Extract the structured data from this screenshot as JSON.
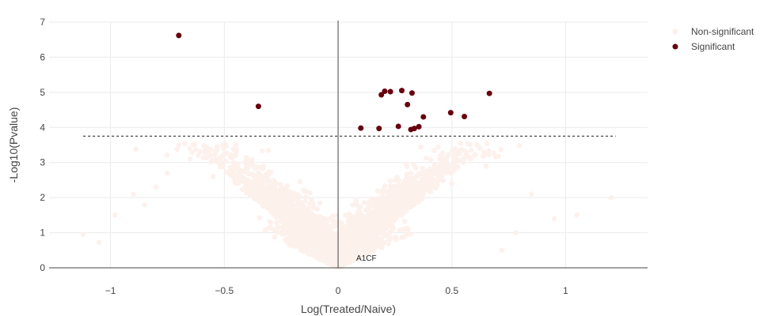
{
  "chart_data": {
    "type": "scatter",
    "title": "",
    "xlabel": "Log(Treated/Naive)",
    "ylabel": "-Log10(Pvalue)",
    "xlim": [
      -1.27,
      1.36
    ],
    "ylim": [
      0,
      7
    ],
    "xticks": [
      -1,
      -0.5,
      0,
      0.5,
      1
    ],
    "xtick_labels": [
      "−1",
      "−0.5",
      "0",
      "0.5",
      "1"
    ],
    "yticks": [
      0,
      1,
      2,
      3,
      4,
      5,
      6,
      7
    ],
    "ytick_labels": [
      "0",
      "1",
      "2",
      "3",
      "4",
      "5",
      "6",
      "7"
    ],
    "grid": true,
    "threshold": {
      "y": 3.75,
      "x_range": [
        -1.12,
        1.22
      ],
      "style": "dashed"
    },
    "vertical_line_x": 0,
    "legend_position": "top-right",
    "colors": {
      "non_significant": "#fdf0ec",
      "significant": "#67000d",
      "grid": "#ebebeb",
      "threshold": "#444444"
    },
    "annotations": [
      {
        "text": "A1CF",
        "x": 0.08,
        "y": 0.27
      }
    ],
    "series": [
      {
        "name": "Non-significant",
        "color": "#fdf0ec",
        "note_count": 3000,
        "points": [
          [
            -1.12,
            0.95
          ],
          [
            -1.05,
            0.72
          ],
          [
            -0.98,
            1.5
          ],
          [
            -0.9,
            2.1
          ],
          [
            -0.85,
            1.8
          ],
          [
            -0.7,
            3.5
          ],
          [
            -0.75,
            2.7
          ],
          [
            -0.8,
            2.3
          ],
          [
            -0.65,
            3.1
          ],
          [
            -0.55,
            2.6
          ],
          [
            1.2,
            2.0
          ],
          [
            1.05,
            1.5
          ],
          [
            0.95,
            1.4
          ],
          [
            0.72,
            0.5
          ],
          [
            0.85,
            2.1
          ],
          [
            0.78,
            1.0
          ],
          [
            0.6,
            3.2
          ],
          [
            0.55,
            3.0
          ],
          [
            0.5,
            2.4
          ],
          [
            0.65,
            2.9
          ]
        ]
      },
      {
        "name": "Significant",
        "color": "#67000d",
        "points": [
          [
            -0.7,
            6.62
          ],
          [
            -0.35,
            4.6
          ],
          [
            0.1,
            3.98
          ],
          [
            0.18,
            3.97
          ],
          [
            0.19,
            4.93
          ],
          [
            0.205,
            5.03
          ],
          [
            0.23,
            5.02
          ],
          [
            0.265,
            4.03
          ],
          [
            0.28,
            5.05
          ],
          [
            0.305,
            4.65
          ],
          [
            0.32,
            3.94
          ],
          [
            0.325,
            4.98
          ],
          [
            0.335,
            3.97
          ],
          [
            0.355,
            4.02
          ],
          [
            0.375,
            4.3
          ],
          [
            0.495,
            4.42
          ],
          [
            0.555,
            4.31
          ],
          [
            0.665,
            4.97
          ]
        ]
      }
    ]
  },
  "legend": {
    "items": [
      {
        "label": "Non-significant"
      },
      {
        "label": "Significant"
      }
    ]
  }
}
